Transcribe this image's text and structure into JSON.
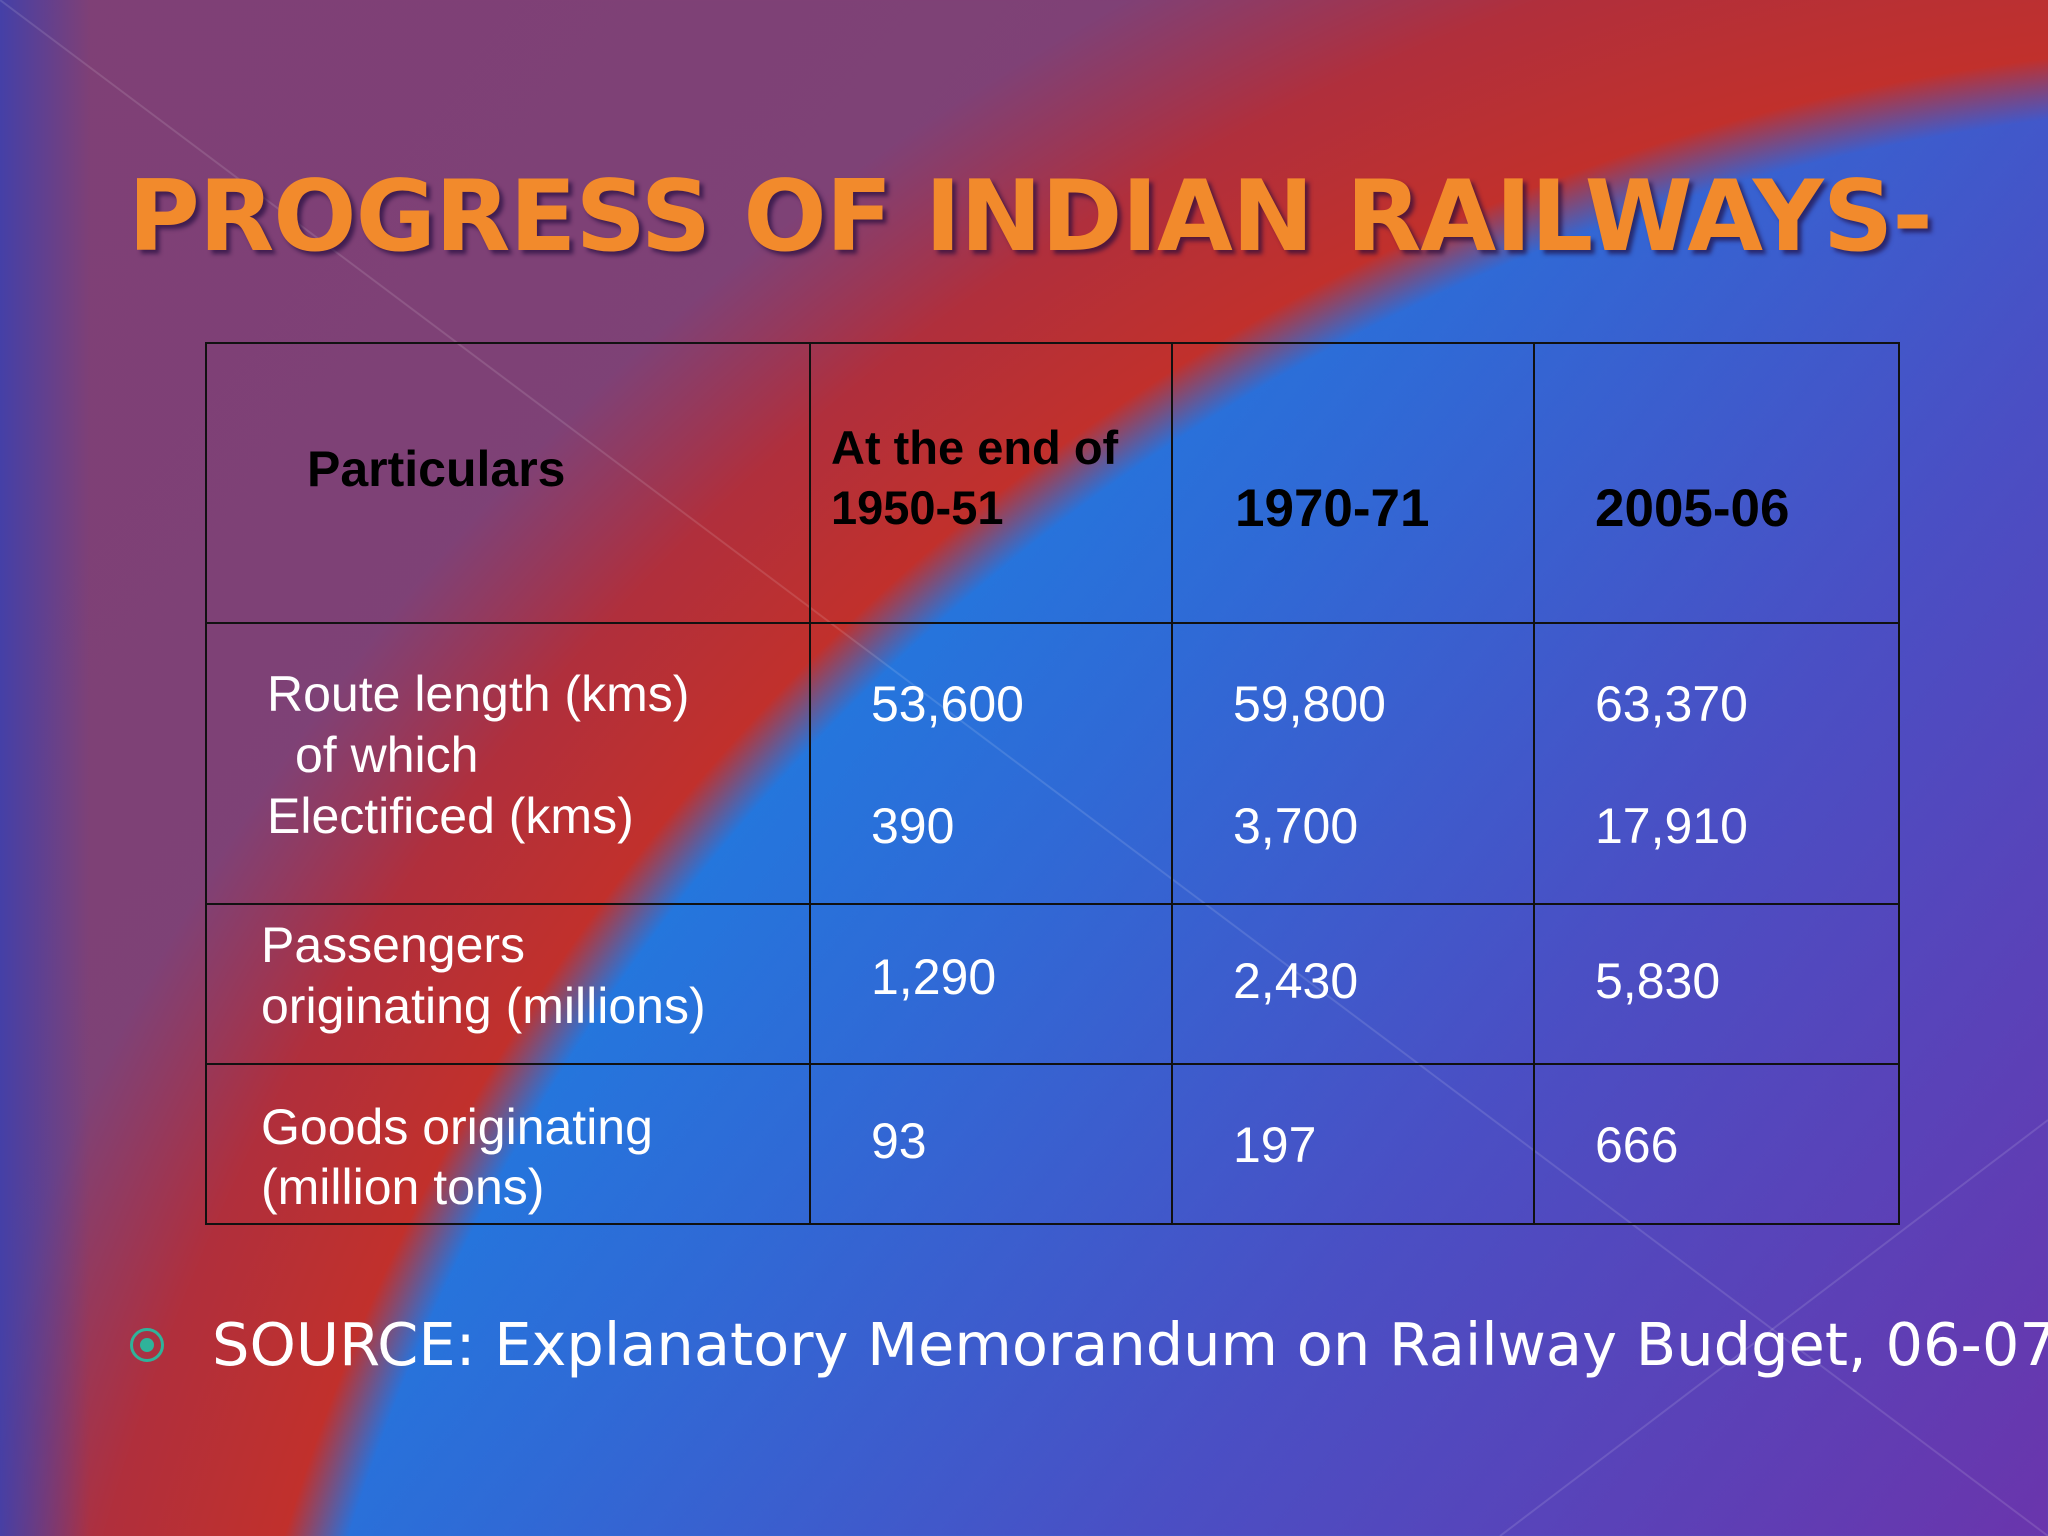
{
  "slide": {
    "title": "PROGRESS OF INDIAN RAILWAYS-",
    "colors": {
      "title": "#f28a2c",
      "red_arc": "#c1302c",
      "bullet": "#2fb39a"
    }
  },
  "table": {
    "headers": {
      "particulars": "Particulars",
      "col1_line1": "At the end of",
      "col1_line2": "1950-51",
      "col2": "1970-71",
      "col3": "2005-06"
    },
    "rows": [
      {
        "label_lines": [
          "Route length (kms)",
          "of which",
          "Electificed (kms)"
        ],
        "route": [
          "53,600",
          "59,800",
          "63,370"
        ],
        "electrified": [
          "390",
          "3,700",
          "17,910"
        ]
      },
      {
        "label_lines": [
          "Passengers",
          "originating (millions)"
        ],
        "values": [
          "1,290",
          "2,430",
          "5,830"
        ]
      },
      {
        "label_lines": [
          "Goods originating",
          "(million tons)"
        ],
        "values": [
          "93",
          "197",
          "666"
        ]
      }
    ]
  },
  "source": {
    "bullet_icon": "circle-bullet-icon",
    "text": "SOURCE: Explanatory Memorandum on Railway Budget, 06-07"
  }
}
